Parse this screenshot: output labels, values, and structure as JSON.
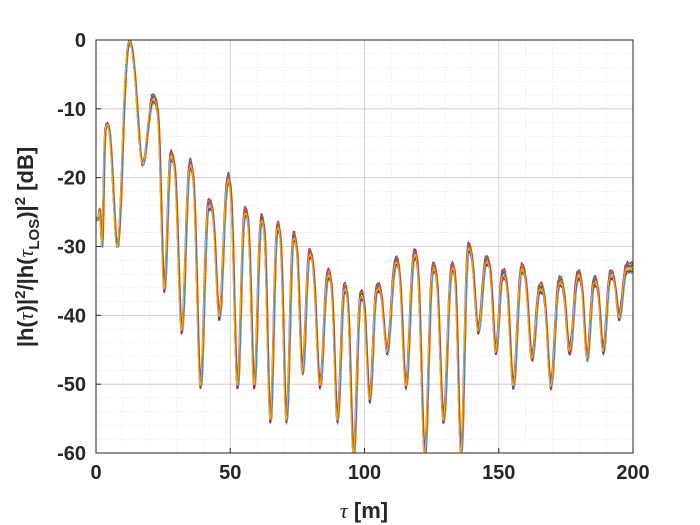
{
  "chart_data": {
    "type": "line",
    "xlabel_symbol": "τ",
    "xlabel_rest": " [m]",
    "ylabel": "|h(τ)|²/|h(τ_LOS)|² [dB]",
    "xlim": [
      0,
      200
    ],
    "ylim": [
      -60,
      0
    ],
    "x_ticks": [
      0,
      50,
      100,
      150,
      200
    ],
    "y_ticks": [
      0,
      -10,
      -20,
      -30,
      -40,
      -50,
      -60
    ],
    "x_tick_labels": [
      "0",
      "50",
      "100",
      "150",
      "200"
    ],
    "y_tick_labels": [
      "0",
      "-10",
      "-20",
      "-30",
      "-40",
      "-50",
      "-60"
    ],
    "grid": true,
    "minor_grid": true,
    "series_count": 10,
    "series_colors": [
      "#0072BD",
      "#D95319",
      "#EDB120",
      "#7E2F8E",
      "#77AC30",
      "#4DBEEE",
      "#A2142F",
      "#0072BD",
      "#D95319",
      "#EDB120"
    ],
    "envelope": {
      "lobe_centers": [
        1,
        3.5,
        12.5,
        22.5,
        28.5,
        35.5,
        42.5,
        49.5,
        56,
        62,
        68,
        74,
        80,
        87,
        93,
        99,
        105,
        112,
        119,
        126,
        133,
        139,
        146,
        152,
        159,
        166,
        173,
        180,
        186,
        192,
        198
      ],
      "lobe_peaks_db": [
        -26,
        -13,
        0,
        -9,
        -17,
        -18,
        -24,
        -20,
        -25,
        -26,
        -27,
        -28.5,
        -31,
        -34,
        -36,
        -37,
        -36,
        -32,
        -31,
        -33,
        -33,
        -30,
        -32,
        -34,
        -33,
        -36,
        -35,
        -34,
        -35,
        -34,
        -33
      ],
      "null_depths_db": [
        -30,
        -30,
        -18,
        -36,
        -42,
        -50,
        -40,
        -50,
        -50,
        -55,
        -55,
        -48,
        -50,
        -55,
        -60,
        -52,
        -45,
        -50,
        -60,
        -55,
        -60,
        -42,
        -45,
        -50,
        -46,
        -50,
        -45,
        -46,
        -45,
        -40
      ]
    }
  }
}
